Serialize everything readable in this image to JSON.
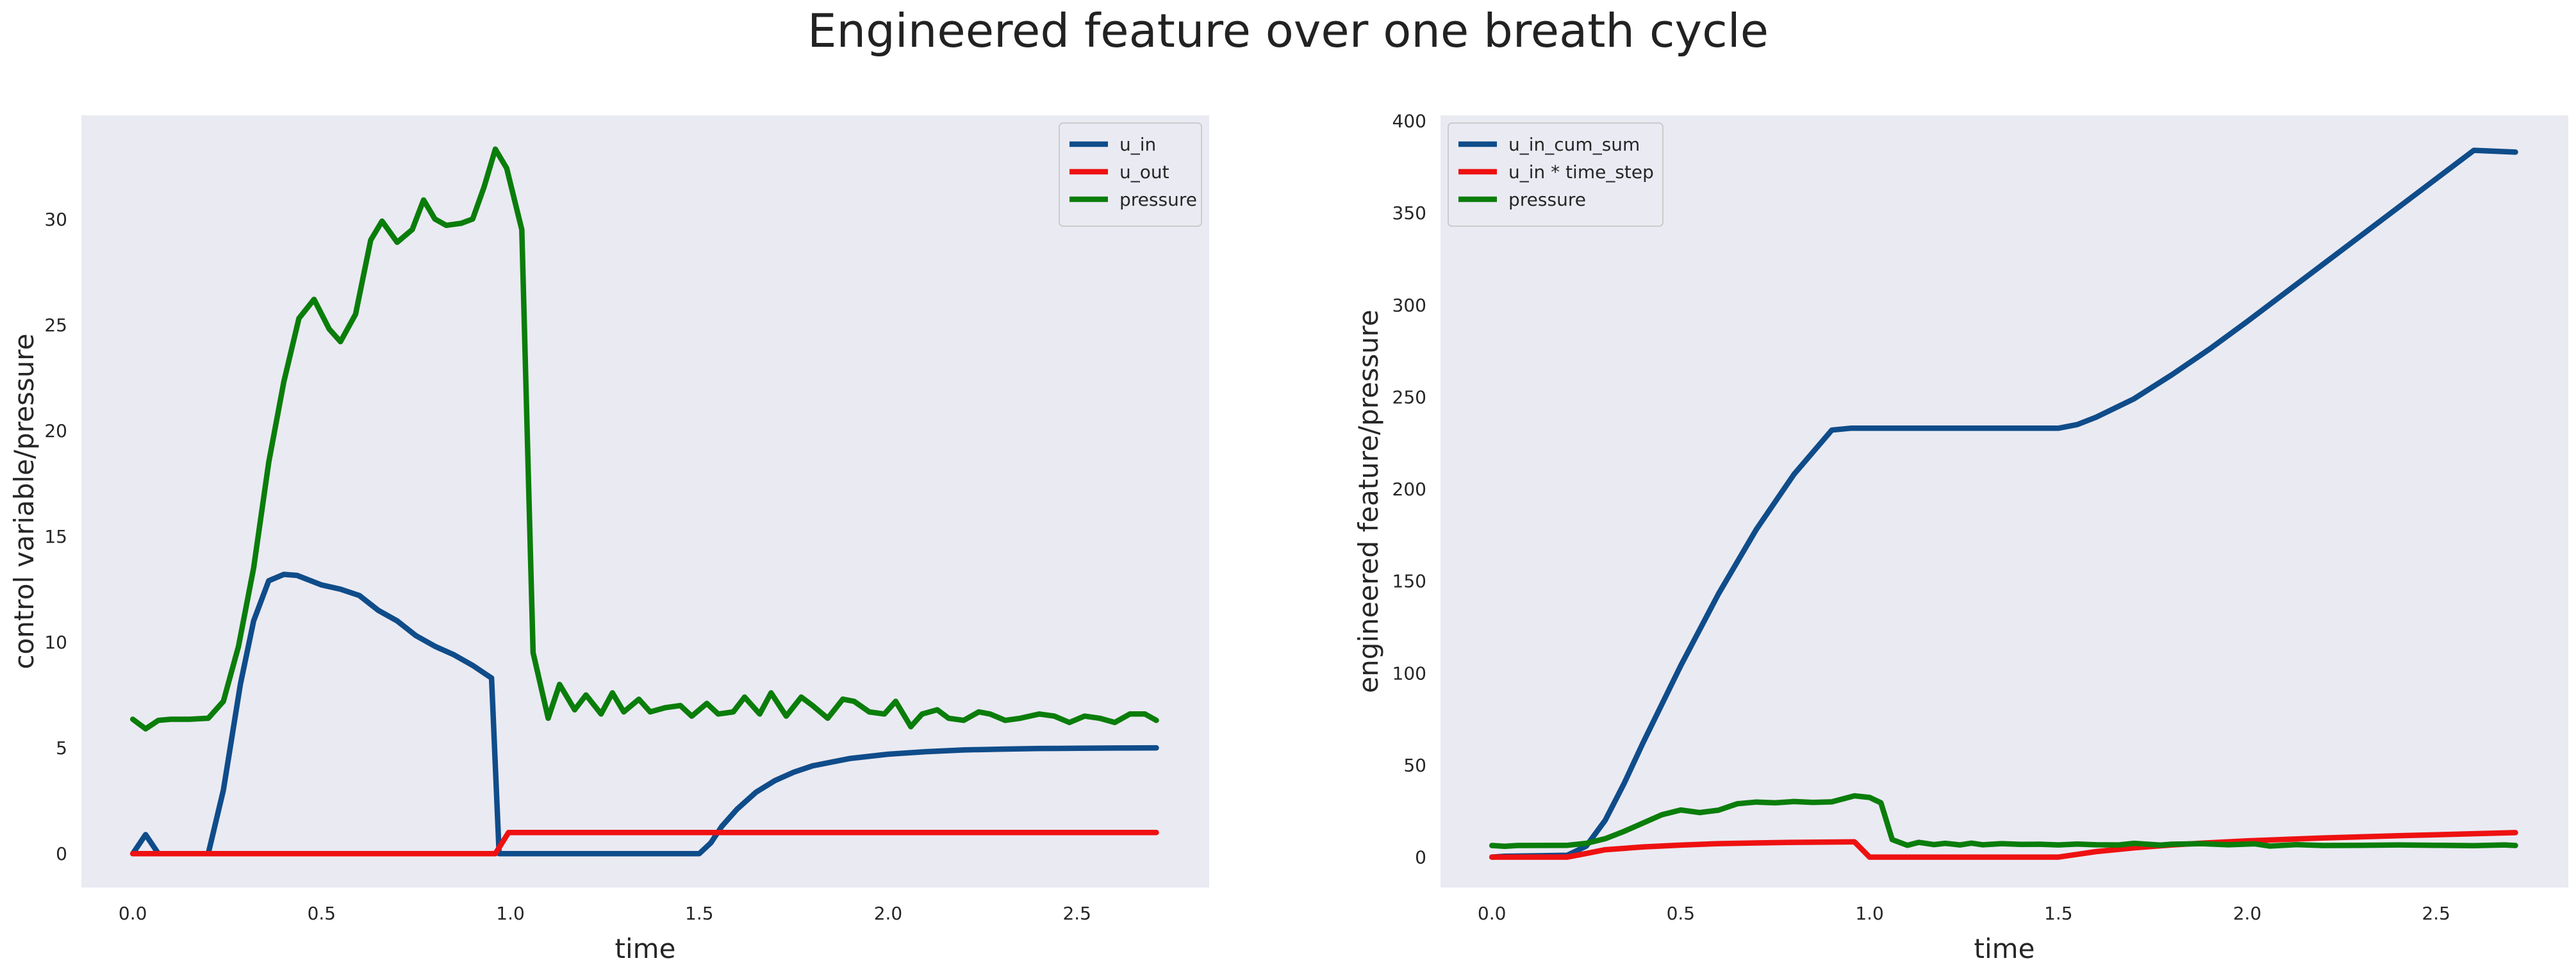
{
  "figure": {
    "title": "Engineered feature over one breath cycle"
  },
  "chart_data": [
    {
      "type": "line",
      "xlabel": "time",
      "ylabel": "control variable/pressure",
      "xlim": [
        -0.136,
        2.85
      ],
      "ylim": [
        -1.6,
        34.9
      ],
      "xticks": [
        0.0,
        0.5,
        1.0,
        1.5,
        2.0,
        2.5
      ],
      "xtick_labels": [
        "0.0",
        "0.5",
        "1.0",
        "1.5",
        "2.0",
        "2.5"
      ],
      "yticks": [
        0,
        5,
        10,
        15,
        20,
        25,
        30
      ],
      "ytick_labels": [
        "0",
        "5",
        "10",
        "15",
        "20",
        "25",
        "30"
      ],
      "grid": false,
      "legend_position": "top-right",
      "series": [
        {
          "name": "u_in",
          "color": "#0f4c8a",
          "points": [
            [
              0.0,
              0
            ],
            [
              0.034,
              0.9
            ],
            [
              0.068,
              0
            ],
            [
              0.1,
              0
            ],
            [
              0.2,
              0
            ],
            [
              0.24,
              3
            ],
            [
              0.285,
              8
            ],
            [
              0.32,
              11
            ],
            [
              0.36,
              12.9
            ],
            [
              0.4,
              13.2
            ],
            [
              0.435,
              13.15
            ],
            [
              0.5,
              12.7
            ],
            [
              0.55,
              12.5
            ],
            [
              0.6,
              12.2
            ],
            [
              0.65,
              11.5
            ],
            [
              0.7,
              11
            ],
            [
              0.75,
              10.3
            ],
            [
              0.8,
              9.8
            ],
            [
              0.85,
              9.4
            ],
            [
              0.9,
              8.9
            ],
            [
              0.95,
              8.3
            ],
            [
              0.97,
              0
            ],
            [
              1.1,
              0
            ],
            [
              1.5,
              0
            ],
            [
              1.53,
              0.5
            ],
            [
              1.56,
              1.3
            ],
            [
              1.6,
              2.1
            ],
            [
              1.65,
              2.9
            ],
            [
              1.7,
              3.45
            ],
            [
              1.75,
              3.85
            ],
            [
              1.8,
              4.15
            ],
            [
              1.9,
              4.5
            ],
            [
              2.0,
              4.7
            ],
            [
              2.1,
              4.82
            ],
            [
              2.2,
              4.9
            ],
            [
              2.3,
              4.94
            ],
            [
              2.4,
              4.97
            ],
            [
              2.5,
              4.98
            ],
            [
              2.6,
              4.99
            ],
            [
              2.71,
              5.0
            ]
          ]
        },
        {
          "name": "u_out",
          "color": "#ee1111",
          "points": [
            [
              0.0,
              0
            ],
            [
              0.96,
              0
            ],
            [
              0.995,
              1
            ],
            [
              1.2,
              1
            ],
            [
              1.5,
              1
            ],
            [
              2.0,
              1
            ],
            [
              2.5,
              1
            ],
            [
              2.71,
              1
            ]
          ]
        },
        {
          "name": "pressure",
          "color": "#0a7d0a",
          "points": [
            [
              0.0,
              6.35
            ],
            [
              0.034,
              5.9
            ],
            [
              0.068,
              6.3
            ],
            [
              0.1,
              6.35
            ],
            [
              0.15,
              6.35
            ],
            [
              0.2,
              6.4
            ],
            [
              0.24,
              7.2
            ],
            [
              0.28,
              9.8
            ],
            [
              0.32,
              13.5
            ],
            [
              0.36,
              18.5
            ],
            [
              0.4,
              22.3
            ],
            [
              0.44,
              25.3
            ],
            [
              0.48,
              26.2
            ],
            [
              0.52,
              24.8
            ],
            [
              0.55,
              24.2
            ],
            [
              0.59,
              25.5
            ],
            [
              0.63,
              29
            ],
            [
              0.66,
              29.9
            ],
            [
              0.7,
              28.9
            ],
            [
              0.74,
              29.5
            ],
            [
              0.77,
              30.9
            ],
            [
              0.8,
              30
            ],
            [
              0.83,
              29.7
            ],
            [
              0.87,
              29.8
            ],
            [
              0.9,
              30
            ],
            [
              0.93,
              31.5
            ],
            [
              0.96,
              33.3
            ],
            [
              0.99,
              32.4
            ],
            [
              1.03,
              29.5
            ],
            [
              1.06,
              9.5
            ],
            [
              1.1,
              6.4
            ],
            [
              1.13,
              8.0
            ],
            [
              1.17,
              6.8
            ],
            [
              1.2,
              7.5
            ],
            [
              1.24,
              6.6
            ],
            [
              1.27,
              7.6
            ],
            [
              1.3,
              6.7
            ],
            [
              1.34,
              7.3
            ],
            [
              1.37,
              6.7
            ],
            [
              1.41,
              6.9
            ],
            [
              1.45,
              7.0
            ],
            [
              1.48,
              6.5
            ],
            [
              1.52,
              7.1
            ],
            [
              1.55,
              6.6
            ],
            [
              1.59,
              6.7
            ],
            [
              1.62,
              7.4
            ],
            [
              1.66,
              6.6
            ],
            [
              1.69,
              7.6
            ],
            [
              1.73,
              6.5
            ],
            [
              1.77,
              7.4
            ],
            [
              1.8,
              7.0
            ],
            [
              1.84,
              6.4
            ],
            [
              1.88,
              7.3
            ],
            [
              1.91,
              7.2
            ],
            [
              1.95,
              6.7
            ],
            [
              1.99,
              6.6
            ],
            [
              2.02,
              7.2
            ],
            [
              2.06,
              6.0
            ],
            [
              2.09,
              6.6
            ],
            [
              2.13,
              6.8
            ],
            [
              2.16,
              6.4
            ],
            [
              2.2,
              6.3
            ],
            [
              2.24,
              6.7
            ],
            [
              2.27,
              6.6
            ],
            [
              2.31,
              6.3
            ],
            [
              2.35,
              6.4
            ],
            [
              2.4,
              6.6
            ],
            [
              2.44,
              6.5
            ],
            [
              2.48,
              6.2
            ],
            [
              2.52,
              6.5
            ],
            [
              2.56,
              6.4
            ],
            [
              2.6,
              6.2
            ],
            [
              2.64,
              6.6
            ],
            [
              2.68,
              6.6
            ],
            [
              2.71,
              6.3
            ]
          ]
        }
      ]
    },
    {
      "type": "line",
      "xlabel": "time",
      "ylabel": "engineered feature/pressure",
      "xlim": [
        -0.136,
        2.85
      ],
      "ylim": [
        -16.5,
        403
      ],
      "xticks": [
        0.0,
        0.5,
        1.0,
        1.5,
        2.0,
        2.5
      ],
      "xtick_labels": [
        "0.0",
        "0.5",
        "1.0",
        "1.5",
        "2.0",
        "2.5"
      ],
      "yticks": [
        0,
        50,
        100,
        150,
        200,
        250,
        300,
        350,
        400
      ],
      "ytick_labels": [
        "0",
        "50",
        "100",
        "150",
        "200",
        "250",
        "300",
        "350",
        "400"
      ],
      "grid": false,
      "legend_position": "top-left",
      "series": [
        {
          "name": "u_in_cum_sum",
          "color": "#0f4c8a",
          "points": [
            [
              0.0,
              0
            ],
            [
              0.034,
              0.5
            ],
            [
              0.2,
              1
            ],
            [
              0.25,
              6
            ],
            [
              0.3,
              20
            ],
            [
              0.35,
              40
            ],
            [
              0.4,
              62
            ],
            [
              0.5,
              104
            ],
            [
              0.6,
              143
            ],
            [
              0.7,
              178
            ],
            [
              0.8,
              208
            ],
            [
              0.9,
              232
            ],
            [
              0.95,
              233
            ],
            [
              1.0,
              233
            ],
            [
              1.2,
              233
            ],
            [
              1.4,
              233
            ],
            [
              1.5,
              233
            ],
            [
              1.55,
              235
            ],
            [
              1.6,
              239
            ],
            [
              1.7,
              249
            ],
            [
              1.8,
              262
            ],
            [
              1.9,
              276
            ],
            [
              2.0,
              291
            ],
            [
              2.2,
              322
            ],
            [
              2.4,
              353
            ],
            [
              2.6,
              384
            ],
            [
              2.71,
              383
            ]
          ]
        },
        {
          "name": "u_in * time_step",
          "color": "#ee1111",
          "points": [
            [
              0.0,
              0
            ],
            [
              0.2,
              0
            ],
            [
              0.25,
              2
            ],
            [
              0.3,
              4
            ],
            [
              0.4,
              5.5
            ],
            [
              0.5,
              6.5
            ],
            [
              0.6,
              7.3
            ],
            [
              0.7,
              7.7
            ],
            [
              0.8,
              8
            ],
            [
              0.9,
              8.2
            ],
            [
              0.96,
              8.3
            ],
            [
              1.0,
              0
            ],
            [
              1.2,
              0
            ],
            [
              1.5,
              0
            ],
            [
              1.55,
              1.5
            ],
            [
              1.6,
              3
            ],
            [
              1.7,
              5
            ],
            [
              1.8,
              6.6
            ],
            [
              1.9,
              7.8
            ],
            [
              2.0,
              8.8
            ],
            [
              2.2,
              10.4
            ],
            [
              2.4,
              11.6
            ],
            [
              2.6,
              12.7
            ],
            [
              2.71,
              13.3
            ]
          ]
        },
        {
          "name": "pressure",
          "color": "#0a7d0a",
          "points": [
            [
              0.0,
              6.3
            ],
            [
              0.034,
              5.9
            ],
            [
              0.068,
              6.3
            ],
            [
              0.2,
              6.4
            ],
            [
              0.25,
              7.5
            ],
            [
              0.3,
              10
            ],
            [
              0.35,
              14
            ],
            [
              0.4,
              18.5
            ],
            [
              0.45,
              23
            ],
            [
              0.5,
              25.6
            ],
            [
              0.55,
              24.2
            ],
            [
              0.6,
              25.5
            ],
            [
              0.65,
              29
            ],
            [
              0.7,
              29.9
            ],
            [
              0.75,
              29.5
            ],
            [
              0.8,
              30.2
            ],
            [
              0.85,
              29.7
            ],
            [
              0.9,
              30
            ],
            [
              0.96,
              33.3
            ],
            [
              1.0,
              32.4
            ],
            [
              1.03,
              29.5
            ],
            [
              1.06,
              9.5
            ],
            [
              1.1,
              6.4
            ],
            [
              1.13,
              8
            ],
            [
              1.17,
              6.8
            ],
            [
              1.2,
              7.5
            ],
            [
              1.24,
              6.6
            ],
            [
              1.27,
              7.6
            ],
            [
              1.3,
              6.7
            ],
            [
              1.35,
              7.3
            ],
            [
              1.4,
              6.9
            ],
            [
              1.45,
              7.0
            ],
            [
              1.5,
              6.6
            ],
            [
              1.55,
              7.1
            ],
            [
              1.6,
              6.7
            ],
            [
              1.66,
              6.6
            ],
            [
              1.7,
              7.5
            ],
            [
              1.77,
              6.5
            ],
            [
              1.8,
              7.0
            ],
            [
              1.88,
              7.3
            ],
            [
              1.95,
              6.7
            ],
            [
              2.02,
              7.2
            ],
            [
              2.06,
              6.0
            ],
            [
              2.13,
              6.8
            ],
            [
              2.2,
              6.3
            ],
            [
              2.3,
              6.4
            ],
            [
              2.4,
              6.6
            ],
            [
              2.5,
              6.4
            ],
            [
              2.6,
              6.2
            ],
            [
              2.68,
              6.6
            ],
            [
              2.71,
              6.3
            ]
          ]
        }
      ]
    }
  ]
}
